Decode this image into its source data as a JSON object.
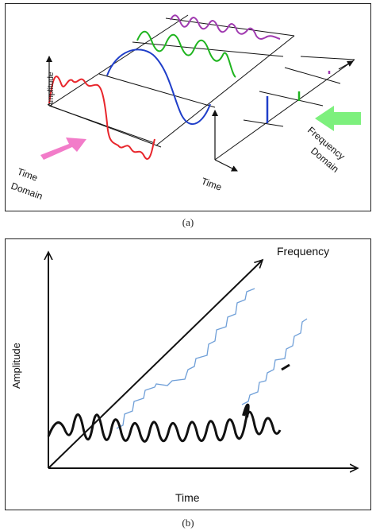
{
  "panel_a": {
    "amplitude_label": "Amplitude",
    "time_label": "Time",
    "time_domain_line1": "Time",
    "time_domain_line2": "Domain",
    "frequency_domain_line1": "Frequency",
    "frequency_domain_line2": "Domain",
    "caption": "(a)",
    "colors": {
      "sum_wave": "#e8262c",
      "fundamental": "#1f3ec9",
      "third_harmonic": "#1fb41f",
      "fifth_harmonic": "#a03ab0",
      "time_arrow": "#f27cc9",
      "frequency_arrow": "#7df07d"
    }
  },
  "panel_b": {
    "amplitude_label": "Amplitude",
    "time_label": "Time",
    "frequency_label": "Frequency",
    "caption": "(b)",
    "colors": {
      "staircase": "#6f9fd8",
      "signal": "#111111"
    }
  }
}
